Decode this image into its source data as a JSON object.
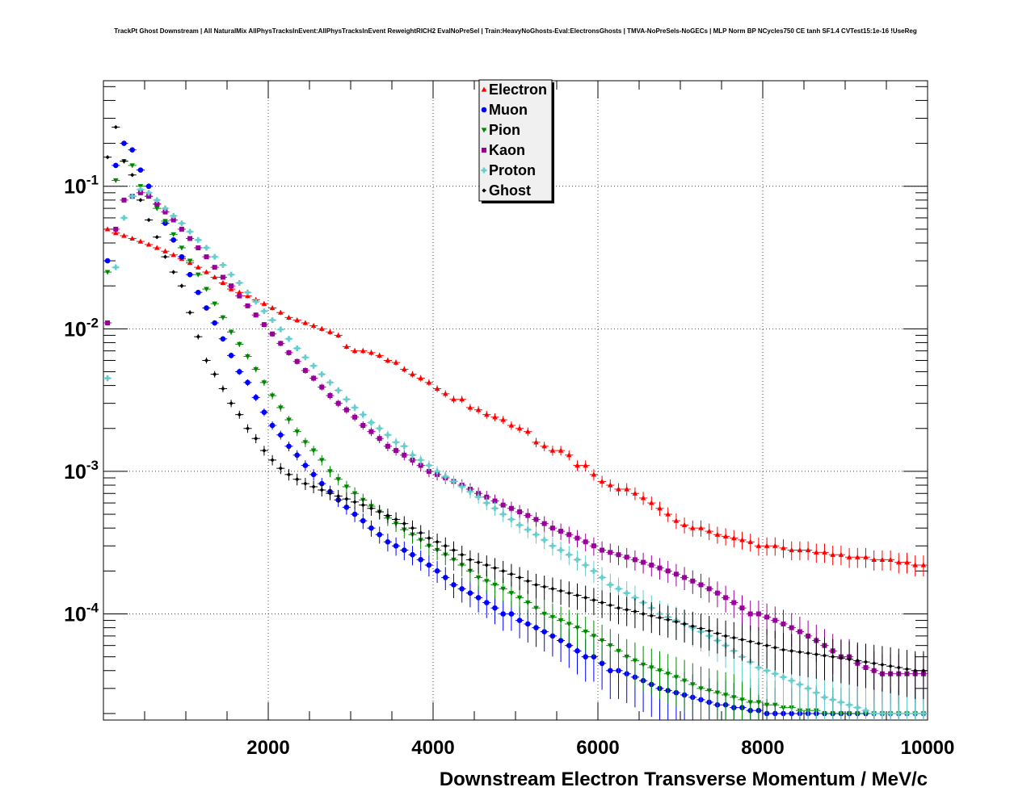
{
  "title": "TrackPt Ghost Downstream | All NaturalMix AllPhysTracksInEvent:AllPhysTracksInEvent ReweightRICH2 EvalNoPreSel | Train:HeavyNoGhosts-Eval:ElectronsGhosts | TMVA-NoPreSels-NoGECs | MLP Norm BP NCycles750 CE tanh SF1.4 CVTest15:1e-16 !UseReg",
  "chart_data": {
    "type": "scatter",
    "title": "TrackPt Ghost Downstream | All NaturalMix AllPhysTracksInEvent:AllPhysTracksInEvent ReweightRICH2 EvalNoPreSel | Train:HeavyNoGhosts-Eval:ElectronsGhosts | TMVA-NoPreSels-NoGECs | MLP Norm BP NCycles750 CE tanh SF1.4 CVTest15:1e-16 !UseReg",
    "xlabel": "Downstream Electron Transverse Momentum / MeV/c",
    "ylabel": "",
    "xlim": [
      0,
      10000
    ],
    "ylim": [
      1.8e-05,
      0.55
    ],
    "yscale": "log",
    "grid": true,
    "legend_position": "top-center",
    "x_ticks": [
      "2000",
      "4000",
      "6000",
      "8000",
      "10000"
    ],
    "y_ticks": [
      {
        "value": 0.1,
        "label": "10-1"
      },
      {
        "value": 0.01,
        "label": "10-2"
      },
      {
        "value": 0.001,
        "label": "10-3"
      },
      {
        "value": 0.0001,
        "label": "10-4"
      }
    ],
    "x": [
      50,
      150,
      250,
      350,
      450,
      550,
      650,
      750,
      850,
      950,
      1050,
      1150,
      1250,
      1350,
      1450,
      1550,
      1650,
      1750,
      1850,
      1950,
      2050,
      2150,
      2250,
      2350,
      2450,
      2550,
      2650,
      2750,
      2850,
      2950,
      3050,
      3150,
      3250,
      3350,
      3450,
      3550,
      3650,
      3750,
      3850,
      3950,
      4050,
      4150,
      4250,
      4350,
      4450,
      4550,
      4650,
      4750,
      4850,
      4950,
      5050,
      5150,
      5250,
      5350,
      5450,
      5550,
      5650,
      5750,
      5850,
      5950,
      6050,
      6150,
      6250,
      6350,
      6450,
      6550,
      6650,
      6750,
      6850,
      6950,
      7050,
      7150,
      7250,
      7350,
      7450,
      7550,
      7650,
      7750,
      7850,
      7950,
      8050,
      8150,
      8250,
      8350,
      8450,
      8550,
      8650,
      8750,
      8850,
      8950,
      9050,
      9150,
      9250,
      9350,
      9450,
      9550,
      9650,
      9750,
      9850,
      9950
    ],
    "series": [
      {
        "name": "Electron",
        "color": "#ff0000",
        "marker": "triangle-up",
        "values": [
          0.05,
          0.047,
          0.045,
          0.043,
          0.041,
          0.039,
          0.037,
          0.035,
          0.033,
          0.031,
          0.029,
          0.027,
          0.025,
          0.023,
          0.021,
          0.019,
          0.018,
          0.017,
          0.016,
          0.015,
          0.014,
          0.013,
          0.012,
          0.0115,
          0.011,
          0.0105,
          0.01,
          0.0095,
          0.009,
          0.0075,
          0.007,
          0.007,
          0.0068,
          0.0065,
          0.006,
          0.0058,
          0.0052,
          0.0048,
          0.0045,
          0.0042,
          0.0038,
          0.0035,
          0.0032,
          0.0032,
          0.0028,
          0.0027,
          0.0025,
          0.0024,
          0.0023,
          0.0021,
          0.002,
          0.0019,
          0.0016,
          0.0015,
          0.0014,
          0.0014,
          0.0013,
          0.0011,
          0.0011,
          0.00095,
          0.00085,
          0.0008,
          0.00075,
          0.00075,
          0.0007,
          0.00065,
          0.0006,
          0.00055,
          0.0005,
          0.00045,
          0.00042,
          0.0004,
          0.0004,
          0.00038,
          0.00036,
          0.00035,
          0.00034,
          0.00033,
          0.00032,
          0.0003,
          0.0003,
          0.0003,
          0.00029,
          0.00028,
          0.00028,
          0.00028,
          0.00027,
          0.00027,
          0.00026,
          0.00026,
          0.00025,
          0.00025,
          0.00025,
          0.00024,
          0.00024,
          0.00024,
          0.00023,
          0.00023,
          0.00022,
          0.00022
        ]
      },
      {
        "name": "Muon",
        "color": "#0000ff",
        "marker": "circle",
        "values": [
          0.03,
          0.14,
          0.2,
          0.18,
          0.13,
          0.1,
          0.075,
          0.055,
          0.042,
          0.032,
          0.024,
          0.018,
          0.014,
          0.011,
          0.0085,
          0.0065,
          0.005,
          0.0042,
          0.0033,
          0.0026,
          0.0021,
          0.0018,
          0.0015,
          0.0013,
          0.0011,
          0.00095,
          0.00082,
          0.00072,
          0.00063,
          0.00056,
          0.0005,
          0.00045,
          0.0004,
          0.00036,
          0.00032,
          0.0003,
          0.00028,
          0.00026,
          0.00024,
          0.00022,
          0.0002,
          0.00018,
          0.00016,
          0.00015,
          0.00014,
          0.00013,
          0.00012,
          0.00011,
          0.0001,
          0.0001,
          9e-05,
          8.5e-05,
          8e-05,
          7.5e-05,
          7e-05,
          6.5e-05,
          6e-05,
          5.5e-05,
          5e-05,
          5e-05,
          4.5e-05,
          4e-05,
          4e-05,
          3.8e-05,
          3.6e-05,
          3.4e-05,
          3.2e-05,
          3e-05,
          2.9e-05,
          2.8e-05,
          2.7e-05,
          2.6e-05,
          2.5e-05,
          2.4e-05,
          2.3e-05,
          2.3e-05,
          2.2e-05,
          2.2e-05,
          2.1e-05,
          2.1e-05,
          2e-05,
          2e-05,
          2e-05,
          2e-05,
          2e-05,
          2e-05,
          2e-05,
          2e-05,
          2e-05,
          2e-05,
          2e-05,
          2e-05,
          2e-05,
          2e-05,
          2e-05,
          2e-05,
          2e-05,
          2e-05,
          2e-05,
          2e-05
        ]
      },
      {
        "name": "Pion",
        "color": "#008800",
        "marker": "triangle-down",
        "values": [
          0.025,
          0.11,
          0.15,
          0.14,
          0.1,
          0.085,
          0.07,
          0.057,
          0.046,
          0.037,
          0.03,
          0.024,
          0.019,
          0.015,
          0.012,
          0.0095,
          0.0078,
          0.0064,
          0.0052,
          0.0042,
          0.0034,
          0.0028,
          0.0023,
          0.0019,
          0.0016,
          0.0014,
          0.0012,
          0.001,
          0.00088,
          0.00078,
          0.0007,
          0.00063,
          0.00057,
          0.00052,
          0.00047,
          0.00043,
          0.00039,
          0.00036,
          0.00033,
          0.0003,
          0.00028,
          0.00026,
          0.00024,
          0.00022,
          0.0002,
          0.00018,
          0.00017,
          0.00016,
          0.00015,
          0.00014,
          0.00013,
          0.00012,
          0.00011,
          0.0001,
          9.5e-05,
          9e-05,
          8.5e-05,
          8e-05,
          7.5e-05,
          7e-05,
          6.5e-05,
          6e-05,
          5.5e-05,
          5e-05,
          4.7e-05,
          4.4e-05,
          4.2e-05,
          4e-05,
          3.8e-05,
          3.6e-05,
          3.4e-05,
          3.2e-05,
          3e-05,
          2.9e-05,
          2.8e-05,
          2.7e-05,
          2.6e-05,
          2.5e-05,
          2.4e-05,
          2.4e-05,
          2.3e-05,
          2.3e-05,
          2.2e-05,
          2.2e-05,
          2.1e-05,
          2.1e-05,
          2.1e-05,
          2e-05,
          2e-05,
          2e-05,
          2e-05,
          2e-05,
          2e-05,
          2e-05,
          2e-05,
          2e-05,
          2e-05,
          2e-05,
          2e-05,
          2e-05
        ]
      },
      {
        "name": "Kaon",
        "color": "#990099",
        "marker": "square",
        "values": [
          0.011,
          0.05,
          0.08,
          0.085,
          0.09,
          0.085,
          0.075,
          0.066,
          0.058,
          0.05,
          0.043,
          0.037,
          0.032,
          0.027,
          0.023,
          0.02,
          0.017,
          0.0145,
          0.0125,
          0.0107,
          0.0092,
          0.0079,
          0.0068,
          0.0059,
          0.0051,
          0.0045,
          0.0039,
          0.0034,
          0.003,
          0.0027,
          0.0024,
          0.0021,
          0.0019,
          0.0017,
          0.0015,
          0.0014,
          0.0013,
          0.0012,
          0.0011,
          0.001,
          0.00095,
          0.0009,
          0.00085,
          0.0008,
          0.00075,
          0.0007,
          0.00066,
          0.00062,
          0.00058,
          0.00055,
          0.00052,
          0.00049,
          0.00046,
          0.00043,
          0.0004,
          0.00038,
          0.00036,
          0.00034,
          0.00032,
          0.0003,
          0.00028,
          0.00027,
          0.00026,
          0.00025,
          0.00024,
          0.00023,
          0.00022,
          0.00021,
          0.0002,
          0.00019,
          0.00018,
          0.00017,
          0.00016,
          0.00015,
          0.00014,
          0.00013,
          0.00012,
          0.00011,
          0.0001,
          0.0001,
          9.5e-05,
          9e-05,
          8.5e-05,
          8e-05,
          7.5e-05,
          7e-05,
          6.5e-05,
          6e-05,
          5.5e-05,
          5e-05,
          5e-05,
          4.5e-05,
          4.2e-05,
          4e-05,
          3.8e-05,
          3.8e-05,
          3.8e-05,
          3.8e-05,
          3.8e-05,
          3.8e-05
        ]
      },
      {
        "name": "Proton",
        "color": "#66cccc",
        "marker": "cross",
        "values": [
          0.0045,
          0.027,
          0.06,
          0.085,
          0.095,
          0.09,
          0.08,
          0.07,
          0.062,
          0.055,
          0.048,
          0.042,
          0.037,
          0.032,
          0.028,
          0.024,
          0.021,
          0.018,
          0.0155,
          0.0133,
          0.0115,
          0.0099,
          0.0085,
          0.0073,
          0.0063,
          0.0055,
          0.0048,
          0.0042,
          0.0037,
          0.0032,
          0.0028,
          0.0025,
          0.0022,
          0.002,
          0.0018,
          0.0016,
          0.0015,
          0.0013,
          0.0012,
          0.0011,
          0.001,
          0.00092,
          0.00085,
          0.00078,
          0.00072,
          0.00066,
          0.0006,
          0.00055,
          0.0005,
          0.00046,
          0.00042,
          0.00039,
          0.00036,
          0.00033,
          0.0003,
          0.00028,
          0.00026,
          0.00024,
          0.00022,
          0.0002,
          0.00018,
          0.00016,
          0.00015,
          0.00014,
          0.00013,
          0.00012,
          0.00011,
          0.0001,
          9.5e-05,
          9e-05,
          8.5e-05,
          8e-05,
          7.5e-05,
          7e-05,
          6.5e-05,
          6e-05,
          5.5e-05,
          5e-05,
          4.6e-05,
          4.2e-05,
          4e-05,
          3.8e-05,
          3.6e-05,
          3.4e-05,
          3.2e-05,
          3e-05,
          2.8e-05,
          2.6e-05,
          2.5e-05,
          2.4e-05,
          2.3e-05,
          2.2e-05,
          2.1e-05,
          2e-05,
          2e-05,
          2e-05,
          2e-05,
          2e-05,
          2e-05,
          2e-05
        ]
      },
      {
        "name": "Ghost",
        "color": "#000000",
        "marker": "diamond",
        "values": [
          0.16,
          0.26,
          0.15,
          0.12,
          0.08,
          0.058,
          0.044,
          0.032,
          0.025,
          0.02,
          0.013,
          0.0088,
          0.006,
          0.0048,
          0.0038,
          0.003,
          0.0025,
          0.002,
          0.0017,
          0.0014,
          0.0012,
          0.00105,
          0.00095,
          0.00088,
          0.00082,
          0.00078,
          0.00074,
          0.0007,
          0.00067,
          0.00064,
          0.00061,
          0.00058,
          0.00055,
          0.00052,
          0.00049,
          0.00046,
          0.00043,
          0.0004,
          0.00037,
          0.00034,
          0.00032,
          0.0003,
          0.00028,
          0.00026,
          0.00024,
          0.00023,
          0.00022,
          0.00021,
          0.0002,
          0.00019,
          0.00018,
          0.00017,
          0.00016,
          0.000155,
          0.00015,
          0.000145,
          0.00014,
          0.000135,
          0.00013,
          0.000125,
          0.00012,
          0.000115,
          0.00011,
          0.000107,
          0.000104,
          0.0001,
          9.7e-05,
          9.4e-05,
          9.1e-05,
          8.8e-05,
          8.5e-05,
          8.2e-05,
          7.9e-05,
          7.6e-05,
          7.3e-05,
          7e-05,
          6.8e-05,
          6.6e-05,
          6.4e-05,
          6.2e-05,
          6e-05,
          5.8e-05,
          5.6e-05,
          5.5e-05,
          5.4e-05,
          5.3e-05,
          5.2e-05,
          5.1e-05,
          5e-05,
          4.9e-05,
          4.8e-05,
          4.7e-05,
          4.6e-05,
          4.5e-05,
          4.4e-05,
          4.3e-05,
          4.2e-05,
          4.1e-05,
          4e-05,
          4e-05
        ]
      }
    ]
  }
}
